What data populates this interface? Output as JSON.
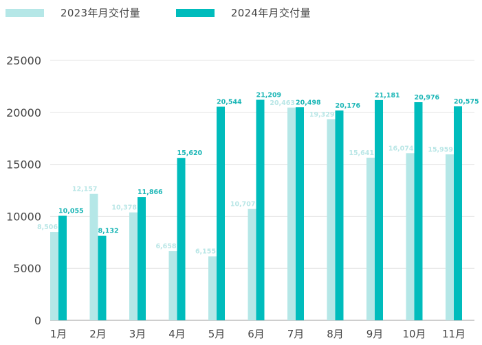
{
  "legend": {
    "items": [
      {
        "label": "2023年月交付量",
        "color": "#b5e7e7"
      },
      {
        "label": "2024年月交付量",
        "color": "#00bcbc"
      }
    ]
  },
  "colors": {
    "series_2023": "#b5e7e7",
    "series_2024": "#00bcbc",
    "label_2023": "#b9e6e6",
    "label_2024": "#1bb6b6",
    "grid": "#e3e3e3",
    "axis": "#bdbdbd"
  },
  "chart_data": {
    "type": "bar",
    "title": "",
    "xlabel": "",
    "ylabel": "",
    "categories": [
      "1月",
      "2月",
      "3月",
      "4月",
      "5月",
      "6月",
      "7月",
      "8月",
      "9月",
      "10月",
      "11月"
    ],
    "series": [
      {
        "name": "2023年月交付量",
        "values": [
          8506,
          12157,
          10378,
          6658,
          6155,
          10707,
          20463,
          19329,
          15641,
          16074,
          15959
        ],
        "labels": [
          "8,506",
          "12,157",
          "10,378",
          "6,658",
          "6,155",
          "10,707",
          "20,463",
          "19,329",
          "15,641",
          "16,074",
          "15,959"
        ]
      },
      {
        "name": "2024年月交付量",
        "values": [
          10055,
          8132,
          11866,
          15620,
          20544,
          21209,
          20498,
          20176,
          21181,
          20976,
          20575
        ],
        "labels": [
          "10,055",
          "8,132",
          "11,866",
          "15,620",
          "20,544",
          "21,209",
          "20,498",
          "20,176",
          "21,181",
          "20,976",
          "20,575"
        ]
      }
    ],
    "ylim": [
      0,
      25000
    ],
    "yticks": [
      "0",
      "5000",
      "10000",
      "15000",
      "20000",
      "25000"
    ],
    "grid": true,
    "legend_position": "top-left"
  }
}
